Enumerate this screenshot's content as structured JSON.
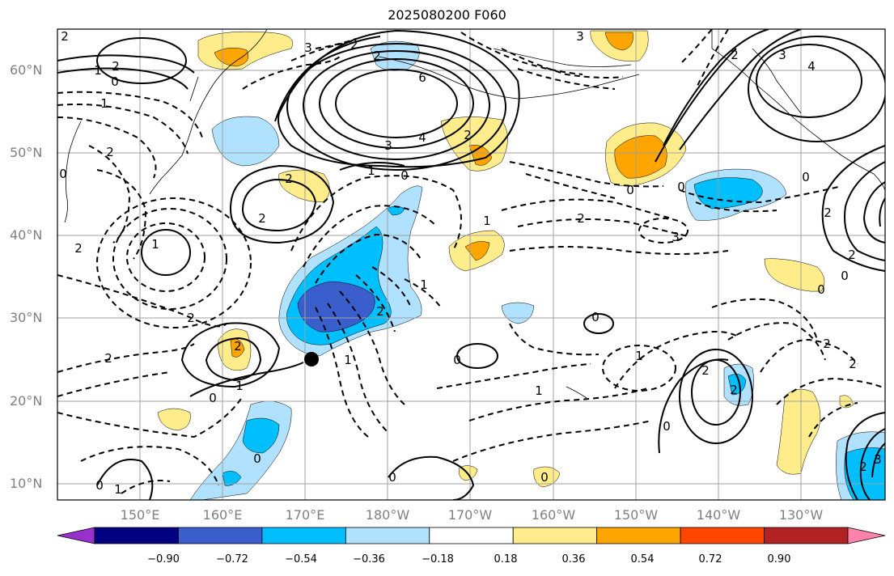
{
  "title": "2025080200 F060",
  "lat_labels": [
    "60°N",
    "50°N",
    "40°N",
    "30°N",
    "20°N",
    "10°N"
  ],
  "lon_labels": [
    "150°E",
    "160°E",
    "170°E",
    "180°W",
    "170°W",
    "160°W",
    "150°W",
    "140°W",
    "130°W"
  ],
  "colorbar": {
    "ticks": [
      "−0.90",
      "−0.72",
      "−0.54",
      "−0.36",
      "−0.18",
      "0.18",
      "0.36",
      "0.54",
      "0.72",
      "0.90"
    ],
    "colors": [
      "#9932CC",
      "#000080",
      "#3A5FCD",
      "#00BFFF",
      "#B0E2FF",
      "#FFFFFF",
      "#FFEC8B",
      "#FFA500",
      "#FF4500",
      "#B22222",
      "#FF82AB"
    ]
  },
  "contour_labels": [
    "2",
    "2",
    "3",
    "3",
    "1",
    "0",
    "2",
    "2",
    "6",
    "3",
    "4",
    "2",
    "4",
    "3",
    "1",
    "2",
    "1",
    "0",
    "2",
    "0",
    "2",
    "2",
    "1",
    "2",
    "0",
    "2",
    "0",
    "0",
    "2",
    "3",
    "2",
    "0",
    "1",
    "2",
    "2",
    "0",
    "1",
    "0",
    "2",
    "1",
    "0",
    "2",
    "1",
    "2",
    "1",
    "0",
    "1",
    "2",
    "2",
    "2",
    "0",
    "0",
    "1",
    "0",
    "2",
    "0",
    "0",
    "3"
  ],
  "marker": "storm-center"
}
